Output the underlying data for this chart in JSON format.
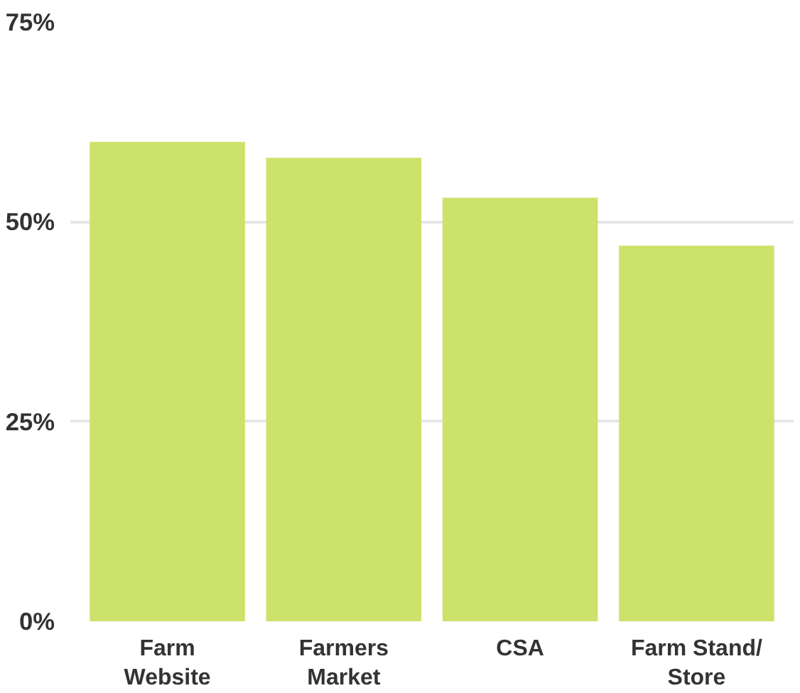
{
  "chart_data": {
    "type": "bar",
    "categories": [
      "Farm Website",
      "Farmers Market",
      "CSA",
      "Farm Stand/ Store"
    ],
    "values": [
      60,
      58,
      53,
      47
    ],
    "color": "#cde26a",
    "ylim": [
      0,
      75
    ],
    "yticks": [
      {
        "value": 0,
        "label": "0%"
      },
      {
        "value": 25,
        "label": "25%"
      },
      {
        "value": 50,
        "label": "50%"
      },
      {
        "value": 75,
        "label": "75%"
      }
    ],
    "grid": "y"
  }
}
